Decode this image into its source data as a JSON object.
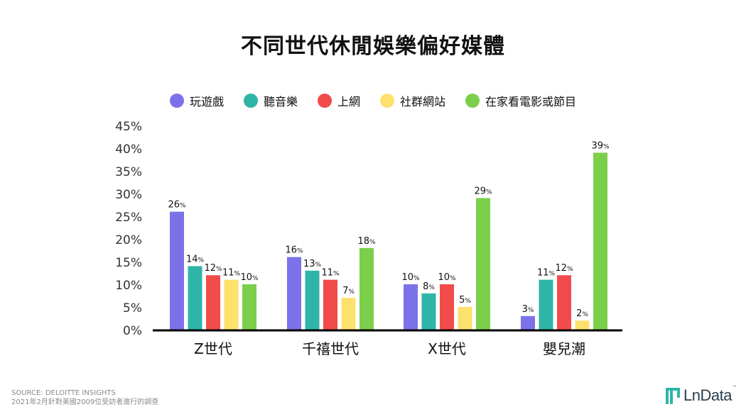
{
  "title": "不同世代休閒娛樂偏好媒體",
  "legend": [
    {
      "label": "玩遊戲",
      "color": "#7b72e9"
    },
    {
      "label": "聽音樂",
      "color": "#2fb5a8"
    },
    {
      "label": "上網",
      "color": "#f24b4b"
    },
    {
      "label": "社群網站",
      "color": "#fde16d"
    },
    {
      "label": "在家看電影或節目",
      "color": "#7ccf4a"
    }
  ],
  "chart_data": {
    "type": "bar",
    "categories": [
      "Z世代",
      "千禧世代",
      "X世代",
      "嬰兒潮"
    ],
    "series": [
      {
        "name": "玩遊戲",
        "values": [
          26,
          16,
          10,
          3
        ]
      },
      {
        "name": "聽音樂",
        "values": [
          14,
          13,
          8,
          11
        ]
      },
      {
        "name": "上網",
        "values": [
          12,
          11,
          10,
          12
        ]
      },
      {
        "name": "社群網站",
        "values": [
          11,
          7,
          5,
          2
        ]
      },
      {
        "name": "在家看電影或節目",
        "values": [
          10,
          18,
          29,
          39
        ]
      }
    ],
    "yticks": [
      "0%",
      "5%",
      "10%",
      "15%",
      "20%",
      "25%",
      "30%",
      "35%",
      "40%",
      "45%"
    ],
    "ylim": [
      0,
      45
    ],
    "value_suffix": "%",
    "colors": [
      "#7b72e9",
      "#2fb5a8",
      "#f24b4b",
      "#fde16d",
      "#7ccf4a"
    ],
    "legend_position": "top-center"
  },
  "footer": {
    "source": "SOURCE: DELOITTE INSIGHTS",
    "note": "2021年2月針對美國2009位受訪者進行的調查"
  },
  "logo": {
    "text": "LnData",
    "tm": "™"
  }
}
